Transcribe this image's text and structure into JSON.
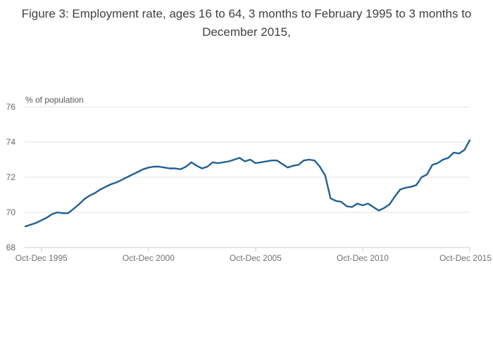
{
  "figure": {
    "title": "Figure 3: Employment rate, ages 16 to 64, 3 months to February 1995 to 3 months to December 2015,"
  },
  "colors": {
    "line": "#206095",
    "grid": "#e3e3e3",
    "axis": "#c6ccd1",
    "y_tick_label": "#666666",
    "x_tick_label": "#707070",
    "unit_label": "#58595b",
    "title": "#414042"
  },
  "chart_data": {
    "type": "line",
    "title": "Figure 3: Employment rate, ages 16 to 64, 3 months to February 1995 to 3 months to December 2015,",
    "unit_label": "% of population",
    "ylim": [
      68,
      76
    ],
    "y_ticks": [
      68,
      70,
      72,
      74,
      76
    ],
    "grid": "horizontal",
    "legend": "none",
    "frequency": "quarterly (3-month rolling periods)",
    "start_period": "3 months to February 1995",
    "end_period": "3 months to December 2015 (Oct-Dec 2015)",
    "x_tick_labels": [
      "Oct-Dec 1995",
      "Oct-Dec 2000",
      "Oct-Dec 2005",
      "Oct-Dec 2010",
      "Oct-Dec 2015"
    ],
    "x_tick_indices": [
      3,
      23,
      43,
      63,
      83
    ],
    "series": [
      {
        "name": "Employment rate, ages 16 to 64",
        "color": "#206095",
        "values": [
          69.2,
          69.3,
          69.4,
          69.55,
          69.7,
          69.9,
          70.0,
          69.95,
          69.95,
          70.2,
          70.45,
          70.75,
          70.95,
          71.1,
          71.3,
          71.45,
          71.6,
          71.7,
          71.85,
          72.0,
          72.15,
          72.3,
          72.45,
          72.55,
          72.6,
          72.6,
          72.55,
          72.5,
          72.5,
          72.45,
          72.6,
          72.85,
          72.65,
          72.5,
          72.6,
          72.85,
          72.8,
          72.85,
          72.9,
          73.0,
          73.1,
          72.9,
          73.0,
          72.8,
          72.85,
          72.9,
          72.95,
          72.95,
          72.75,
          72.55,
          72.65,
          72.7,
          72.95,
          73.0,
          72.95,
          72.6,
          72.1,
          70.8,
          70.65,
          70.6,
          70.35,
          70.3,
          70.5,
          70.4,
          70.5,
          70.3,
          70.1,
          70.25,
          70.45,
          70.9,
          71.3,
          71.4,
          71.45,
          71.55,
          72.0,
          72.15,
          72.7,
          72.8,
          73.0,
          73.1,
          73.4,
          73.35,
          73.55,
          74.1
        ]
      }
    ]
  }
}
